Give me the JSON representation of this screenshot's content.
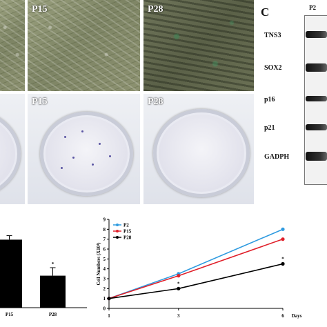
{
  "panel_c": {
    "label": "C",
    "header": "P2"
  },
  "micrographs": [
    {
      "label": "P15"
    },
    {
      "label": "P28"
    }
  ],
  "colony_dishes": [
    {
      "label": "P15"
    },
    {
      "label": "P28"
    }
  ],
  "western_blot": {
    "proteins": [
      "TNS3",
      "SOX2",
      "p16",
      "p21",
      "GADPH"
    ]
  },
  "chart_data": [
    {
      "type": "bar",
      "categories": [
        "P15",
        "P28"
      ],
      "values": [
        0.85,
        0.4
      ],
      "errors": [
        0.05,
        0.1
      ],
      "significance": [
        "",
        "*"
      ],
      "colors": {
        "bar": "#000000"
      }
    },
    {
      "type": "line",
      "x": [
        1,
        3,
        6
      ],
      "xlabel": "Days",
      "ylabel": "Cell Numbers (X10⁴)",
      "ylim": [
        0,
        9
      ],
      "yticks": [
        "0",
        "1",
        "2",
        "3",
        "4",
        "5",
        "6",
        "7",
        "8",
        "9"
      ],
      "xticks": [
        "1",
        "3",
        "6"
      ],
      "legend_position": "top-left",
      "series": [
        {
          "name": "P2",
          "values": [
            1,
            3.5,
            8.0
          ],
          "color": "#2f9be0"
        },
        {
          "name": "P15",
          "values": [
            1,
            3.3,
            7.0
          ],
          "color": "#e0202a"
        },
        {
          "name": "P28",
          "values": [
            1,
            2.0,
            4.5
          ],
          "color": "#000000"
        }
      ],
      "significance": [
        {
          "x": 3,
          "label": "*"
        },
        {
          "x": 6,
          "label": "*"
        }
      ]
    }
  ]
}
